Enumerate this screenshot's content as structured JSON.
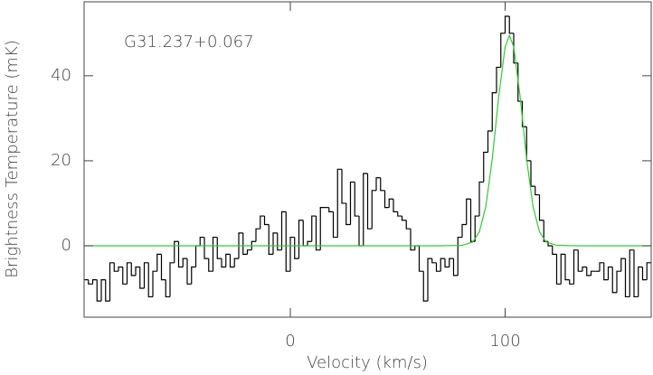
{
  "chart_data": {
    "type": "step",
    "annotation": "G31.237+0.067",
    "xlabel": "Velocity (km/s)",
    "ylabel": "Brightness Temperature (mK)",
    "xlim": [
      -96,
      168
    ],
    "ylim": [
      -16.8,
      57.4
    ],
    "xticks": [
      0,
      100
    ],
    "yticks": [
      0,
      20,
      40
    ],
    "series": [
      {
        "color": "#000000",
        "step": true,
        "x": [
          -95,
          -93,
          -91,
          -89,
          -87,
          -85,
          -83,
          -81,
          -79,
          -77,
          -75,
          -73,
          -71,
          -69,
          -67,
          -65,
          -63,
          -61,
          -59,
          -57,
          -55,
          -53,
          -51,
          -49,
          -47,
          -45,
          -43,
          -41,
          -39,
          -37,
          -35,
          -33,
          -31,
          -29,
          -27,
          -25,
          -23,
          -21,
          -19,
          -17,
          -15,
          -13,
          -11,
          -9,
          -7,
          -5,
          -3,
          -1,
          1,
          3,
          5,
          7,
          9,
          11,
          13,
          15,
          17,
          19,
          21,
          23,
          25,
          27,
          29,
          31,
          33,
          35,
          37,
          39,
          41,
          43,
          45,
          47,
          49,
          51,
          53,
          55,
          57,
          59,
          61,
          63,
          65,
          67,
          69,
          71,
          73,
          75,
          77,
          79,
          81,
          83,
          85,
          87,
          89,
          91,
          93,
          95,
          97,
          99,
          101,
          103,
          105,
          107,
          109,
          111,
          113,
          115,
          117,
          119,
          121,
          123,
          125,
          127,
          129,
          131,
          133,
          135,
          137,
          139,
          141,
          143,
          145,
          147,
          149,
          151,
          153,
          155,
          157,
          159,
          161,
          163,
          165,
          167
        ],
        "values": [
          -8,
          -9,
          -8,
          -13,
          -8,
          -13,
          -4,
          -6,
          -5,
          -9,
          -4,
          -7,
          -5,
          -10,
          -4,
          -12,
          -6,
          -2,
          -8,
          -12,
          -4,
          1,
          -5,
          -3,
          -9,
          -5,
          0,
          2,
          -3,
          -6,
          2,
          -3,
          -5,
          -2,
          -5,
          -3,
          3,
          -2,
          -1,
          1,
          4,
          7,
          5,
          -2,
          3,
          -1,
          8,
          -6,
          2,
          -3,
          6,
          0,
          1,
          7,
          -1,
          9,
          9,
          8,
          2,
          18,
          10,
          5,
          15,
          7,
          0,
          17,
          4,
          13,
          16,
          13,
          9,
          11,
          8,
          7,
          6,
          4,
          -1,
          0,
          -6,
          -13,
          -3,
          -4,
          -6,
          -3,
          -5,
          -3,
          -7,
          2,
          5,
          11,
          1,
          7,
          15,
          22,
          27,
          36,
          42,
          50,
          54,
          50,
          43,
          34,
          28,
          20,
          14,
          12,
          6,
          1,
          0,
          -2,
          -9,
          -2,
          -8,
          -9,
          -1,
          -6,
          -5,
          -7,
          -6,
          -6,
          -4,
          -8,
          -5,
          -11,
          -6,
          -3,
          -12,
          -1,
          -12,
          -5,
          -8,
          -4
        ]
      },
      {
        "color": "#33cc33",
        "x": [
          -96,
          70,
          80,
          85,
          88,
          91,
          94,
          97,
          100,
          102,
          104,
          107,
          110,
          113,
          116,
          119,
          124,
          134,
          168
        ],
        "values": [
          0,
          0,
          0.1,
          0.9,
          3.3,
          9.2,
          20.4,
          35,
          46.8,
          49.5,
          46.8,
          35,
          20.4,
          9.2,
          3.3,
          0.9,
          0.1,
          0,
          0
        ]
      }
    ]
  }
}
